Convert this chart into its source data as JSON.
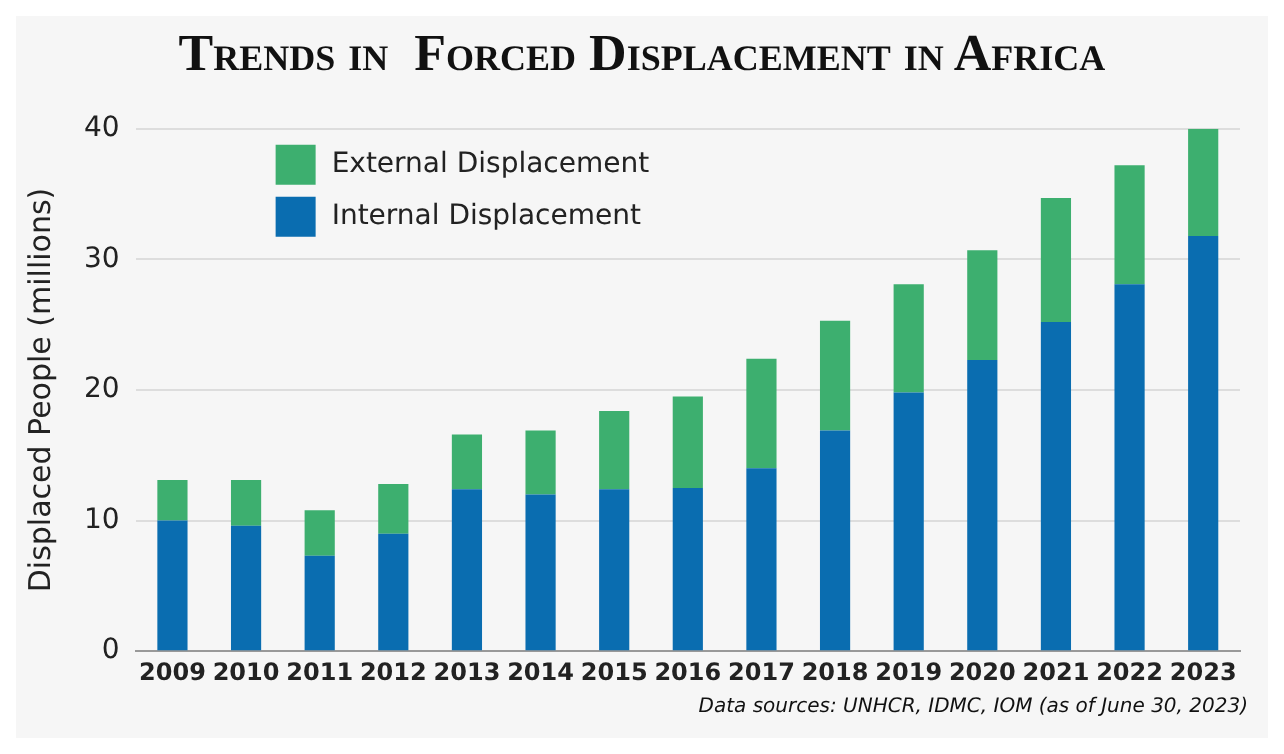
{
  "chart_data": {
    "type": "bar",
    "title": "Trends in  Forced Displacement in Africa",
    "ylabel": "Displaced People (millions)",
    "categories": [
      "2009",
      "2010",
      "2011",
      "2012",
      "2013",
      "2014",
      "2015",
      "2016",
      "2017",
      "2018",
      "2019",
      "2020",
      "2021",
      "2022",
      "2023"
    ],
    "stacked": true,
    "series": [
      {
        "name": "Internal Displacement",
        "color": "#0a6db0",
        "values": [
          10.0,
          9.6,
          7.3,
          9.0,
          12.4,
          12.0,
          12.4,
          12.5,
          14.0,
          16.9,
          19.8,
          22.3,
          25.2,
          28.1,
          31.8
        ]
      },
      {
        "name": "External Displacement",
        "color": "#3daf6f",
        "values": [
          3.1,
          3.5,
          3.5,
          3.8,
          4.2,
          4.9,
          6.0,
          7.0,
          8.4,
          8.4,
          8.3,
          8.4,
          9.5,
          9.1,
          8.2
        ]
      }
    ],
    "ylim": [
      0,
      40
    ],
    "yticks": [
      0,
      10,
      20,
      30,
      40
    ],
    "grid": "y",
    "legend": "top left",
    "annotations": [
      "Data sources: UNHCR, IDMC, IOM (as of June 30, 2023)"
    ]
  }
}
